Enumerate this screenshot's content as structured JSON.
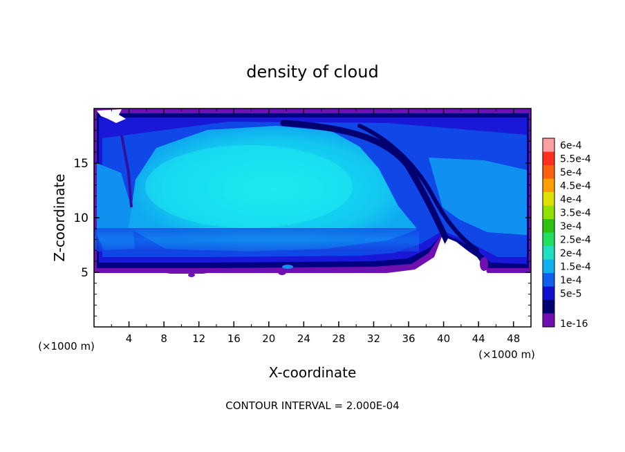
{
  "chart_data": {
    "type": "heatmap",
    "title": "density of cloud",
    "xlabel": "X-coordinate",
    "ylabel": "Z-coordinate",
    "x_unit": "(×1000 m)",
    "y_unit": "(×1000 m)",
    "xlim": [
      0,
      50
    ],
    "ylim": [
      0,
      20
    ],
    "x_ticks": [
      4,
      8,
      12,
      16,
      20,
      24,
      28,
      32,
      36,
      40,
      44,
      48
    ],
    "y_ticks": [
      5,
      10,
      15
    ],
    "footer": "CONTOUR INTERVAL = 2.000E-04",
    "colorbar": {
      "labels": [
        "6e-4",
        "5.5e-4",
        "5e-4",
        "4.5e-4",
        "4e-4",
        "3.5e-4",
        "3e-4",
        "2.5e-4",
        "2e-4",
        "1.5e-4",
        "1e-4",
        "5e-5",
        "1e-16"
      ],
      "colors": [
        "#ffa0a0",
        "#ff3020",
        "#ff6010",
        "#ffa000",
        "#e0e000",
        "#90e000",
        "#30c010",
        "#20e060",
        "#20e0c0",
        "#10b0f0",
        "#1060f0",
        "#1010d0",
        "#000070",
        "#7010b0"
      ]
    },
    "field_description": "cloud density field; maximum values around 2e-4 in the central cloud between x 4-36, z 6-18",
    "grid": false
  }
}
